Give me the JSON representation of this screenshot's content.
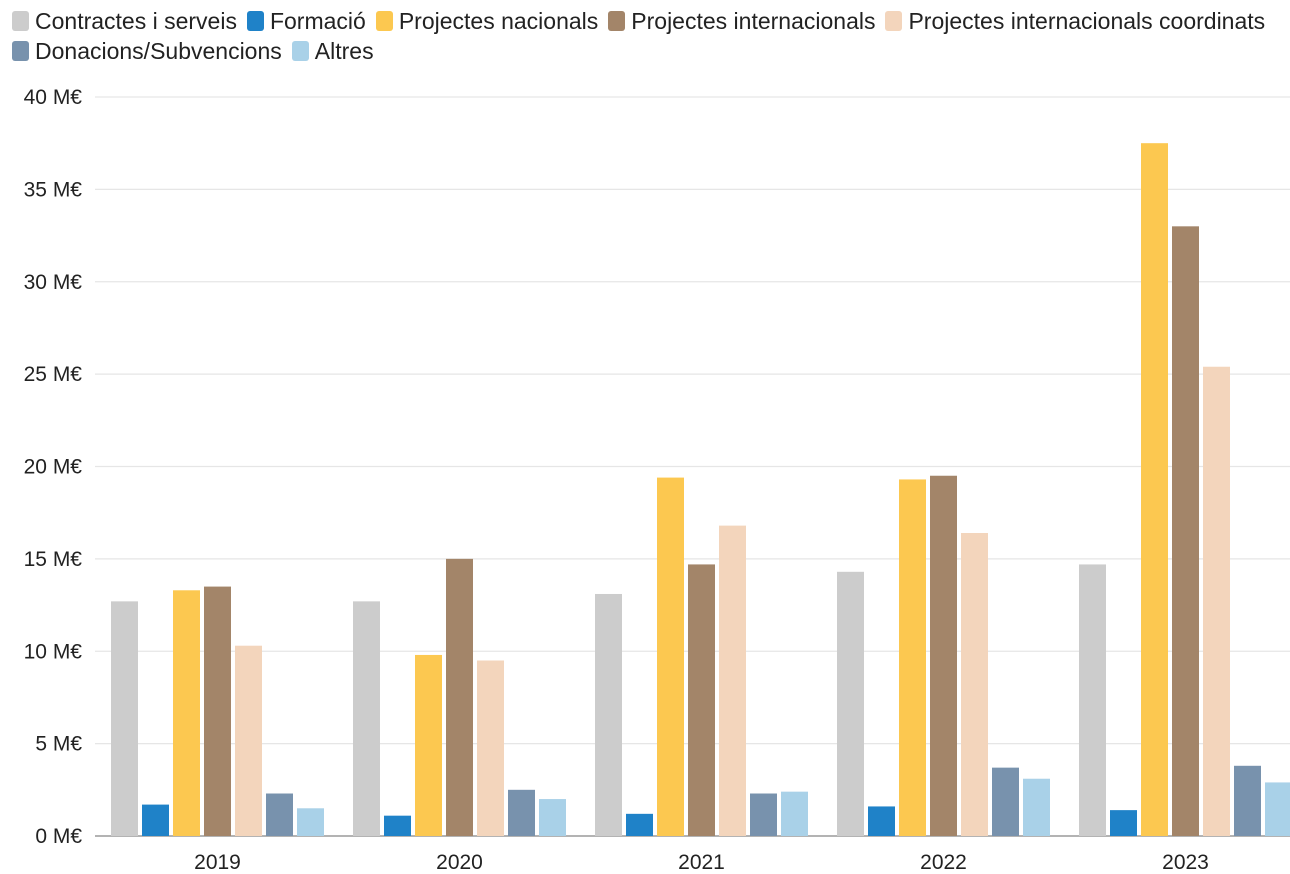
{
  "chart_data": {
    "type": "bar",
    "categories": [
      "2019",
      "2020",
      "2021",
      "2022",
      "2023"
    ],
    "series": [
      {
        "name": "Contractes i serveis",
        "color": "#cccccc",
        "values": [
          12.7,
          12.7,
          13.1,
          14.3,
          14.7
        ]
      },
      {
        "name": "Formació",
        "color": "#1f82c8",
        "values": [
          1.7,
          1.1,
          1.2,
          1.6,
          1.4
        ]
      },
      {
        "name": "Projectes nacionals",
        "color": "#fcc850",
        "values": [
          13.3,
          9.8,
          19.4,
          19.3,
          37.5
        ]
      },
      {
        "name": "Projectes internacionals",
        "color": "#a38569",
        "values": [
          13.5,
          15.0,
          14.7,
          19.5,
          33.0
        ]
      },
      {
        "name": "Projectes internacionals coordinats",
        "color": "#f3d5bc",
        "values": [
          10.3,
          9.5,
          16.8,
          16.4,
          25.4
        ]
      },
      {
        "name": "Donacions/Subvencions",
        "color": "#7892ad",
        "values": [
          2.3,
          2.5,
          2.3,
          3.7,
          3.8
        ]
      },
      {
        "name": "Altres",
        "color": "#a9d1e8",
        "values": [
          1.5,
          2.0,
          2.4,
          3.1,
          2.9
        ]
      }
    ],
    "yticks": [
      "0 M€",
      "5 M€",
      "10 M€",
      "15 M€",
      "20 M€",
      "25 M€",
      "30 M€",
      "35 M€",
      "40 M€"
    ],
    "ylim": [
      0,
      40
    ],
    "grid": true,
    "legend_position": "top"
  }
}
